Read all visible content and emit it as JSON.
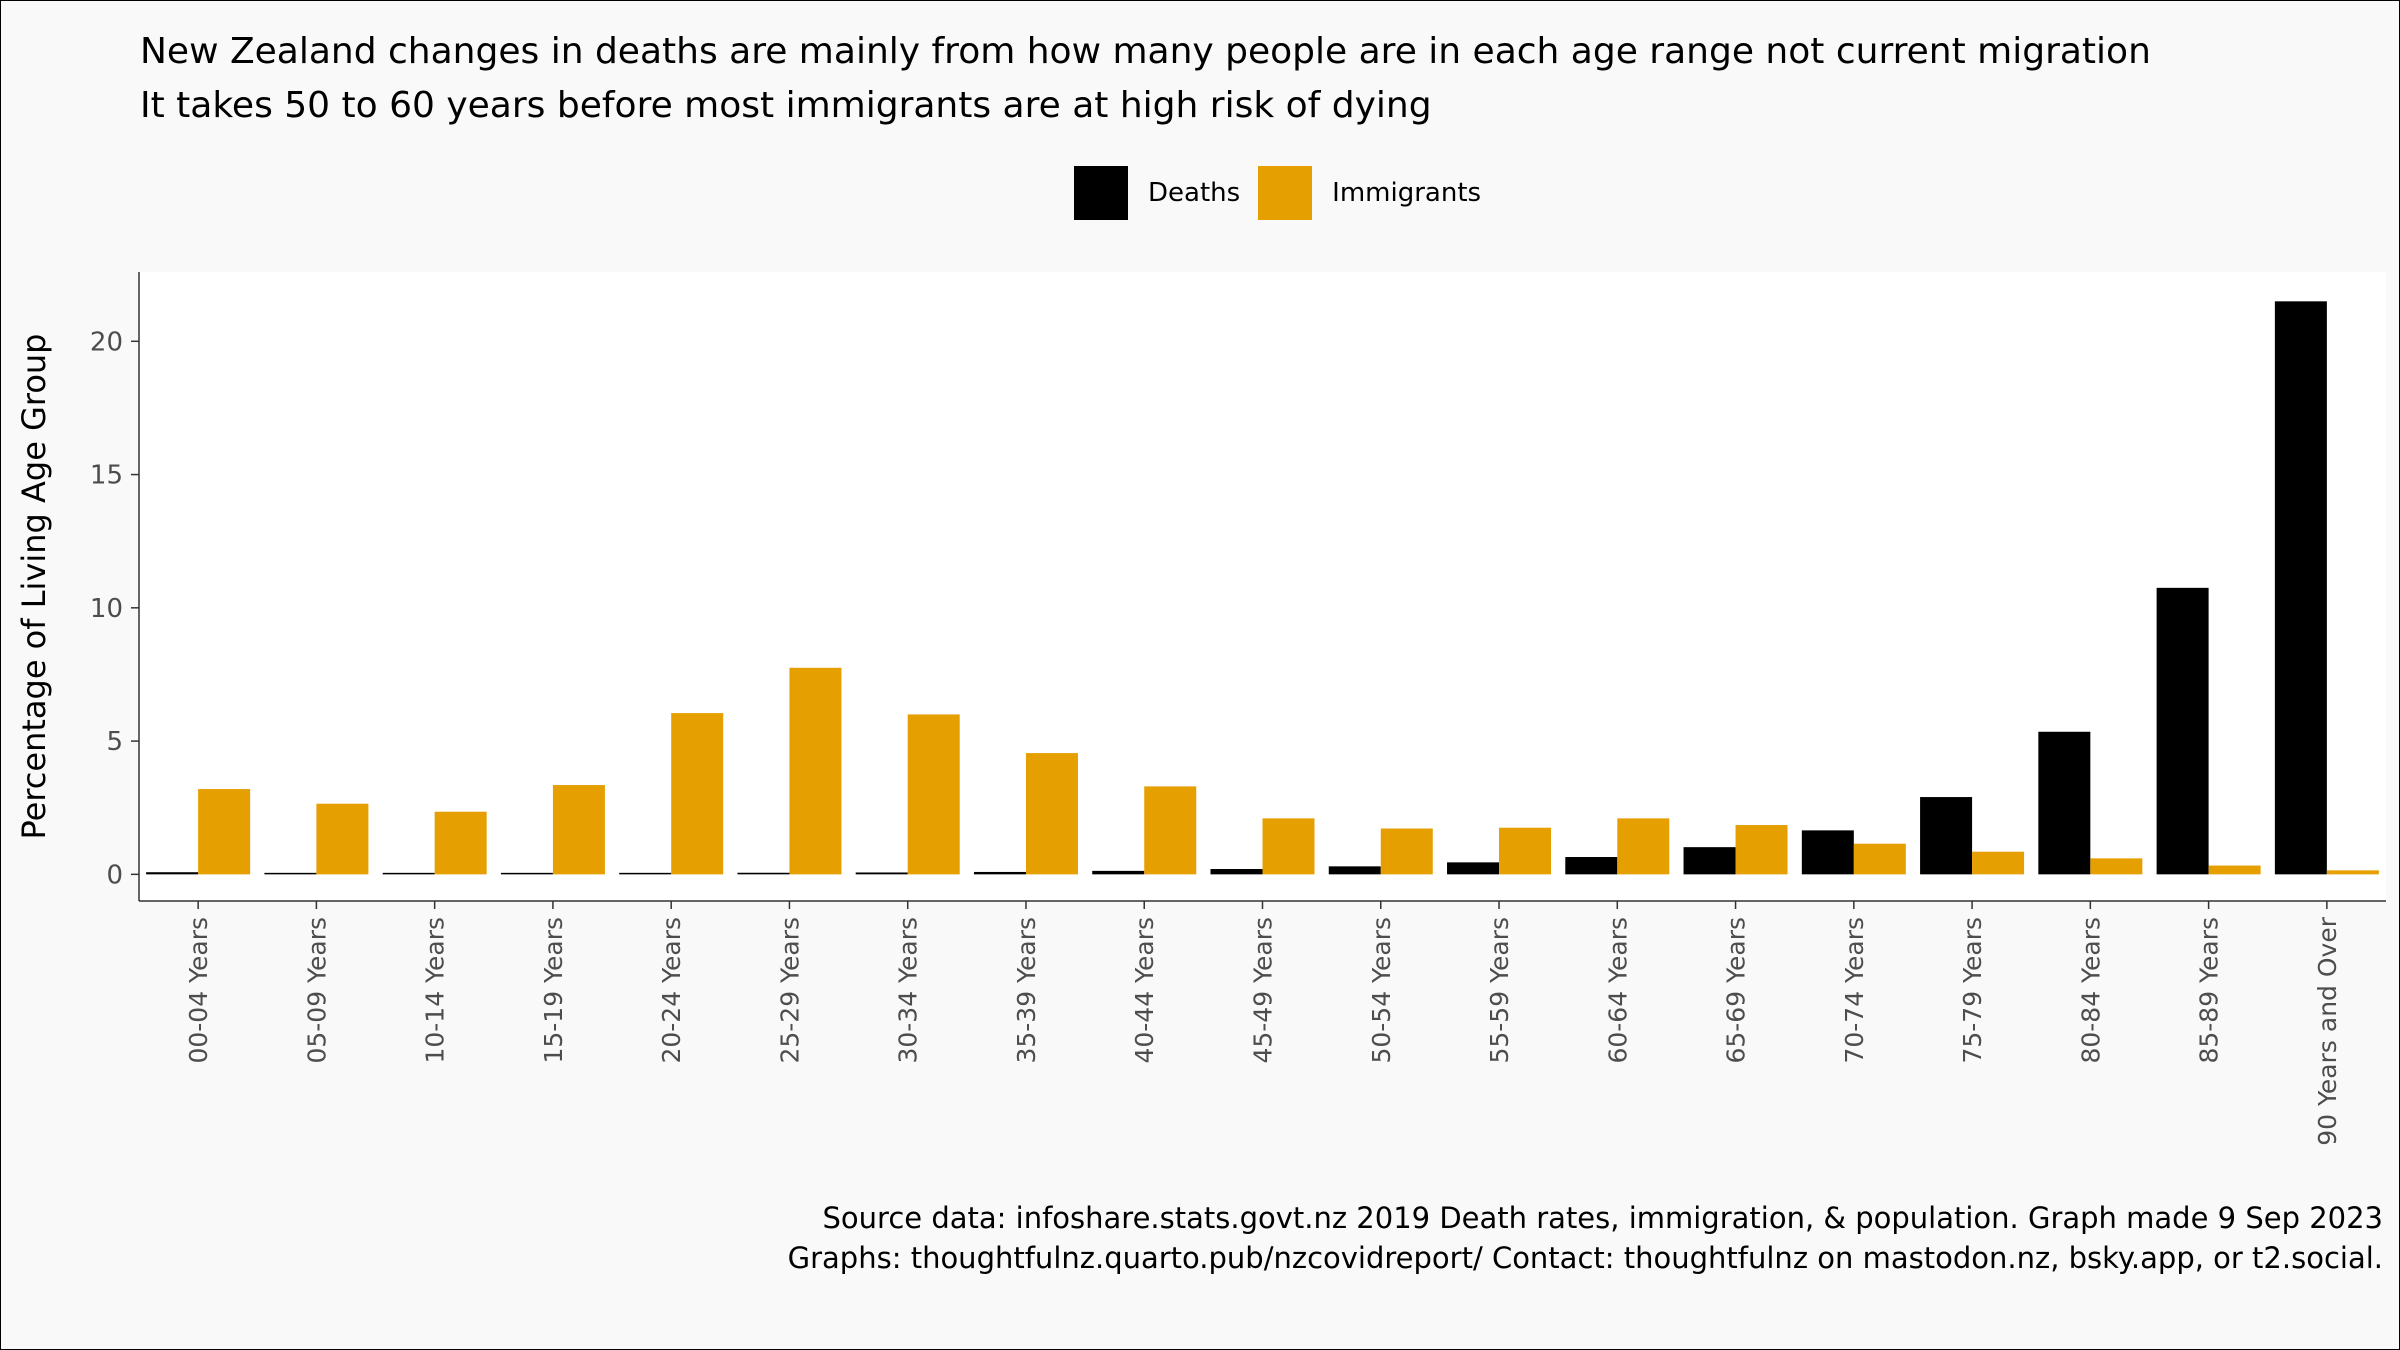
{
  "title_lines": [
    "New Zealand changes in deaths are mainly from how many people are in each age range not current migration",
    "It takes 50 to 60 years before most immigrants are at high risk of dying"
  ],
  "legend": [
    {
      "label": "Deaths",
      "color": "#000000"
    },
    {
      "label": "Immigrants",
      "color": "#E69F00"
    }
  ],
  "caption_lines": [
    "Source data: infoshare.stats.govt.nz 2019 Death rates, immigration, & population. Graph made 9 Sep 2023",
    "Graphs: thoughtfulnz.quarto.pub/nzcovidreport/ Contact: thoughtfulnz on mastodon.nz, bsky.app, or t2.social."
  ],
  "chart_data": {
    "type": "bar",
    "ylabel": "Percentage of Living Age Group",
    "xlabel": "",
    "ylim": [
      -1.0,
      22.6
    ],
    "yticks": [
      0,
      5,
      10,
      15,
      20
    ],
    "grid": false,
    "legend_position": "top",
    "categories": [
      "00-04 Years",
      "05-09 Years",
      "10-14 Years",
      "15-19 Years",
      "20-24 Years",
      "25-29 Years",
      "30-34 Years",
      "35-39 Years",
      "40-44 Years",
      "45-49 Years",
      "50-54 Years",
      "55-59 Years",
      "60-64 Years",
      "65-69 Years",
      "70-74 Years",
      "75-79 Years",
      "80-84 Years",
      "85-89 Years",
      "90 Years and Over"
    ],
    "series": [
      {
        "name": "Deaths",
        "color": "#000000",
        "values": [
          0.08,
          0.01,
          0.02,
          0.04,
          0.05,
          0.06,
          0.07,
          0.09,
          0.13,
          0.2,
          0.3,
          0.45,
          0.65,
          1.02,
          1.65,
          2.9,
          5.35,
          10.75,
          21.5
        ]
      },
      {
        "name": "Immigrants",
        "color": "#E69F00",
        "values": [
          3.2,
          2.65,
          2.35,
          3.35,
          6.05,
          7.75,
          6.0,
          4.55,
          3.3,
          2.1,
          1.72,
          1.75,
          2.1,
          1.85,
          1.15,
          0.85,
          0.6,
          0.33,
          0.15
        ]
      }
    ]
  }
}
